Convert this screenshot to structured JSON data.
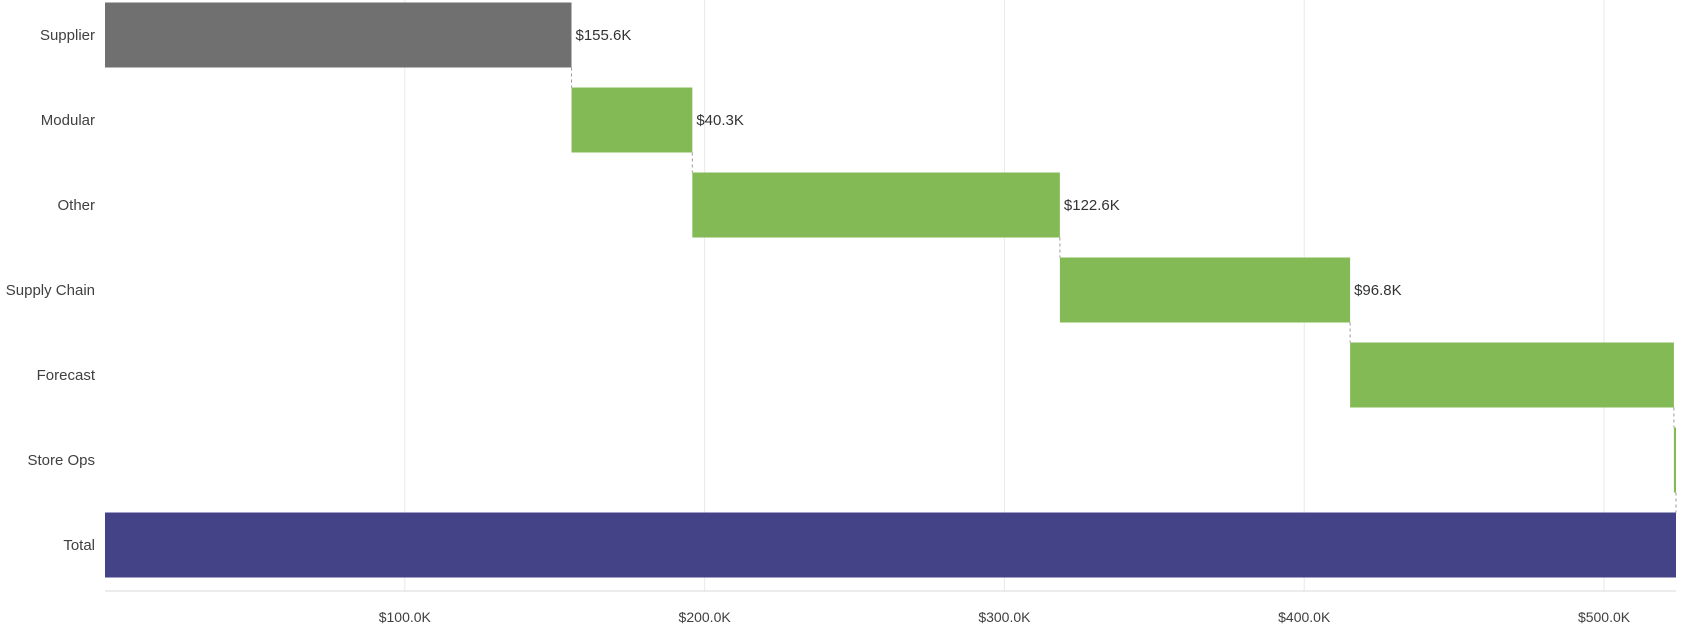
{
  "chart_data": {
    "type": "bar",
    "subtype": "waterfall",
    "orientation": "horizontal",
    "title": "",
    "xlabel": "",
    "ylabel": "",
    "xlim": [
      0,
      524
    ],
    "x_unit": "thousand USD",
    "x_ticks": [
      {
        "value": 100,
        "label": "$100.0K"
      },
      {
        "value": 200,
        "label": "$200.0K"
      },
      {
        "value": 300,
        "label": "$300.0K"
      },
      {
        "value": 400,
        "label": "$400.0K"
      },
      {
        "value": 500,
        "label": "$500.0K"
      }
    ],
    "grid": true,
    "legend": "none",
    "categories": [
      "Supplier",
      "Modular",
      "Other",
      "Supply Chain",
      "Forecast",
      "Store Ops",
      "Total"
    ],
    "bars": [
      {
        "category": "Supplier",
        "kind": "start",
        "start": 0,
        "end": 155.6,
        "label": "$155.6K"
      },
      {
        "category": "Modular",
        "kind": "increase",
        "start": 155.6,
        "end": 195.9,
        "label": "$40.3K"
      },
      {
        "category": "Other",
        "kind": "increase",
        "start": 195.9,
        "end": 318.5,
        "label": "$122.6K"
      },
      {
        "category": "Supply Chain",
        "kind": "increase",
        "start": 318.5,
        "end": 415.3,
        "label": "$96.8K"
      },
      {
        "category": "Forecast",
        "kind": "increase",
        "start": 415.3,
        "end": 523.3,
        "label": ""
      },
      {
        "category": "Store Ops",
        "kind": "increase",
        "start": 523.3,
        "end": 524.0,
        "label": ""
      },
      {
        "category": "Total",
        "kind": "total",
        "start": 0,
        "end": 524.0,
        "label": ""
      }
    ],
    "colors": {
      "start": "#707070",
      "increase": "#84ba56",
      "total": "#454387",
      "gridline": "#e9e9e9",
      "axis": "#d8d8d8",
      "connector": "#9a9a9a",
      "text": "#404040"
    }
  }
}
